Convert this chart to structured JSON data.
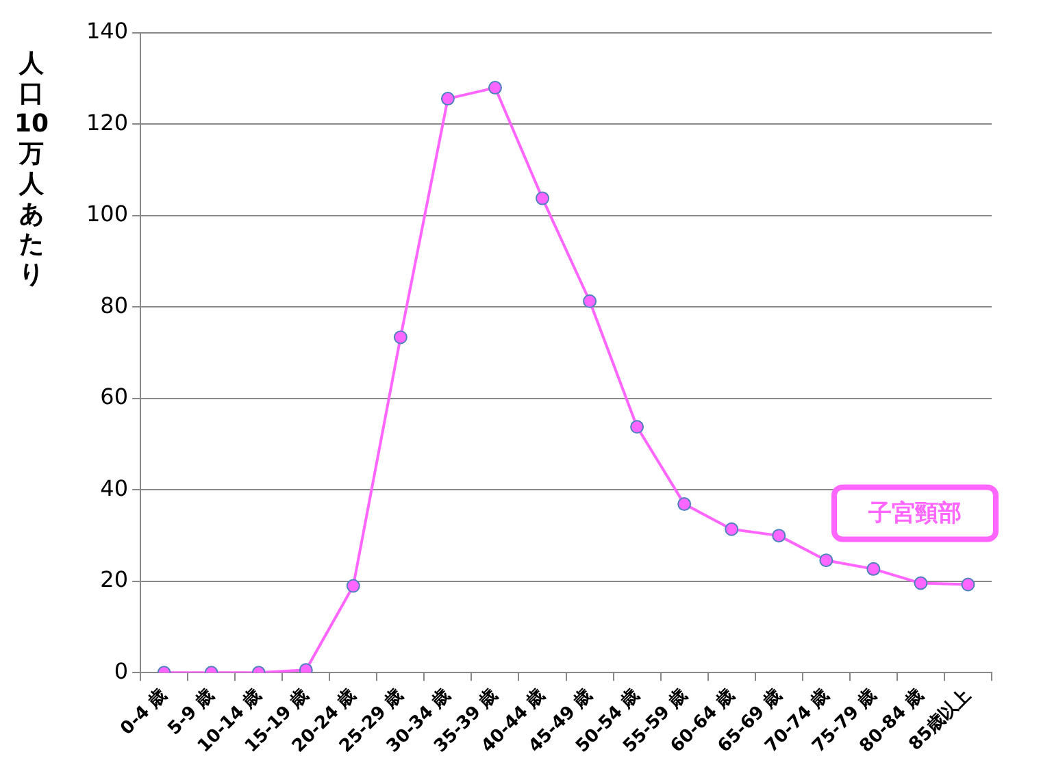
{
  "chart_data": {
    "type": "line",
    "ylabel": "人口10万人あたり",
    "categories": [
      "0-4 歳",
      "5-9 歳",
      "10-14 歳",
      "15-19 歳",
      "20-24 歳",
      "25-29 歳",
      "30-34 歳",
      "35-39 歳",
      "40-44 歳",
      "45-49 歳",
      "50-54 歳",
      "55-59 歳",
      "60-64 歳",
      "65-69 歳",
      "70-74 歳",
      "75-79 歳",
      "80-84 歳",
      "85歳以上"
    ],
    "series": [
      {
        "name": "子宮頸部",
        "color": "#ff66ff",
        "values": [
          0,
          0,
          0,
          0.6,
          19,
          73.4,
          125.6,
          128,
          103.8,
          81.3,
          53.8,
          36.9,
          31.4,
          30,
          24.6,
          22.7,
          19.6,
          19.3
        ]
      }
    ],
    "ylim": [
      0,
      140
    ],
    "yticks": [
      0,
      20,
      40,
      60,
      80,
      100,
      120,
      140
    ],
    "grid": "y",
    "marker": "circle",
    "line_style": "solid"
  }
}
